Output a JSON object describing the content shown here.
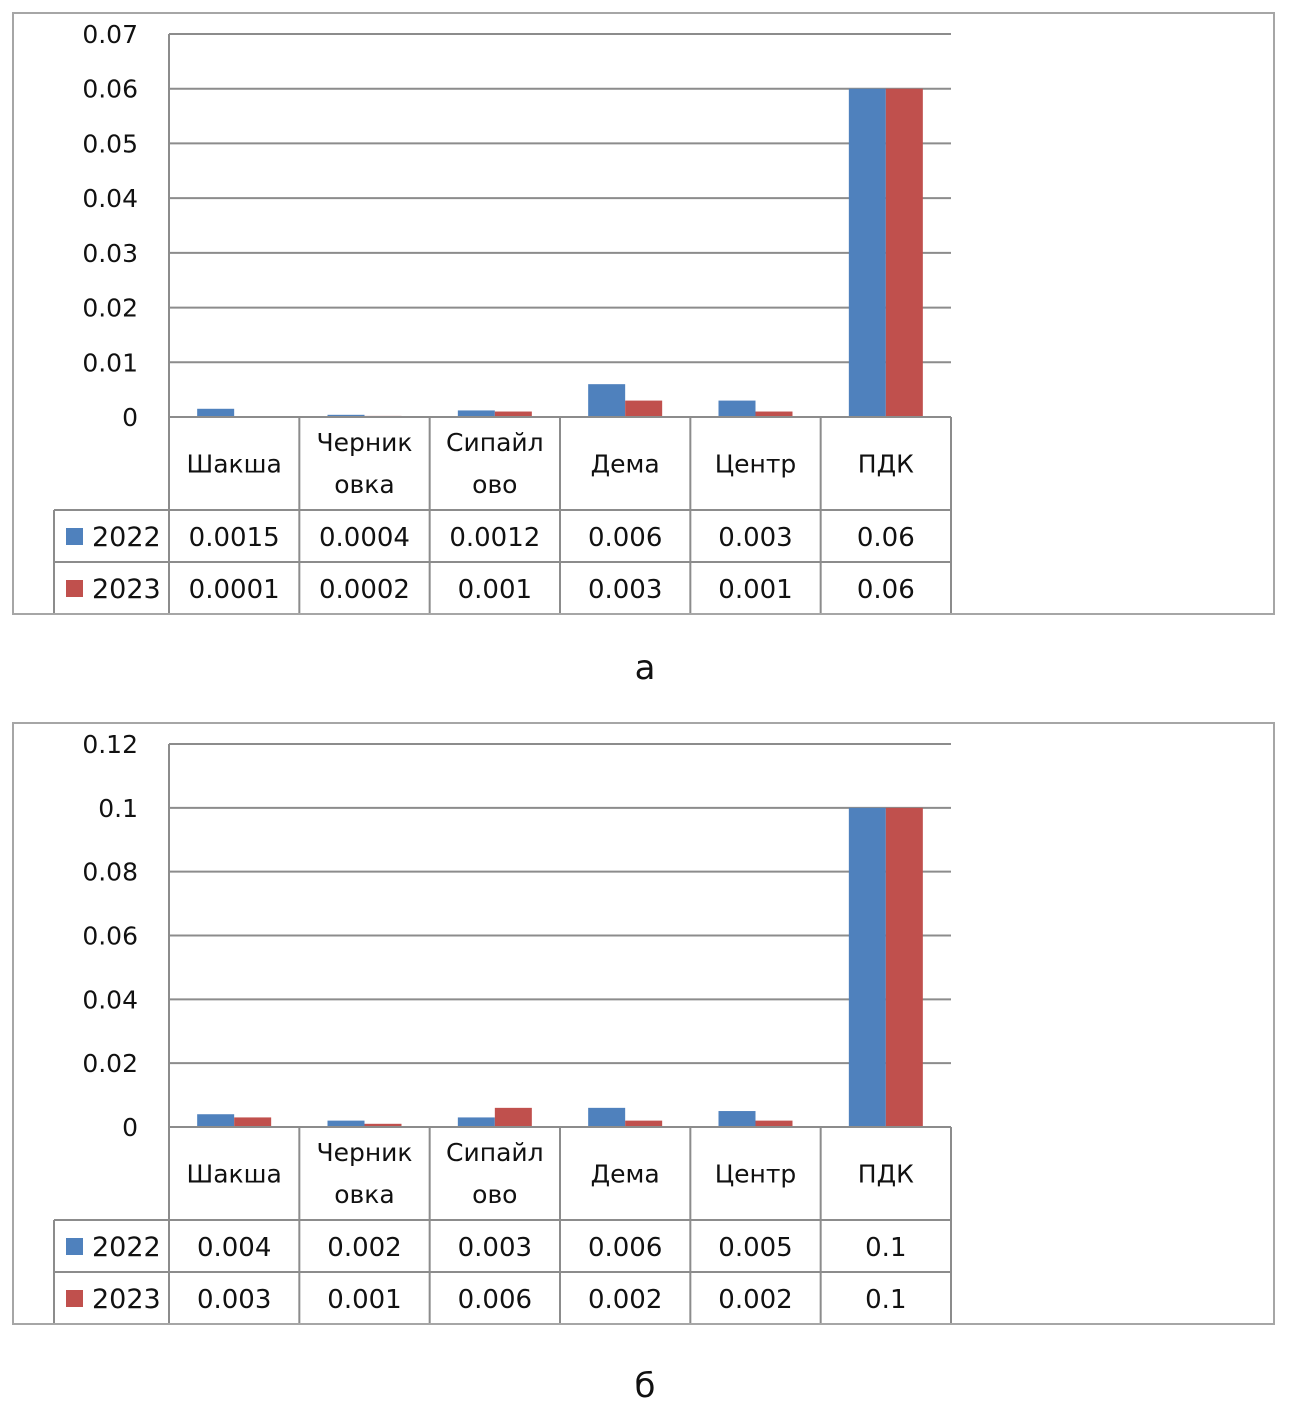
{
  "colors": {
    "2022": "#4f81bd",
    "2023": "#c0504d",
    "grid": "#8c8c8c",
    "frame": "#a6a6a6"
  },
  "captions": {
    "a": "а",
    "b": "б"
  },
  "chart_data": [
    {
      "type": "bar",
      "ylim": [
        0,
        0.07
      ],
      "yticks": [
        "0",
        "0.01",
        "0.02",
        "0.03",
        "0.04",
        "0.05",
        "0.06",
        "0.07"
      ],
      "categories": [
        [
          "Шакша"
        ],
        [
          "Черник",
          "овка"
        ],
        [
          "Сипайл",
          "ово"
        ],
        [
          "Дема"
        ],
        [
          "Центр"
        ],
        [
          "ПДК"
        ]
      ],
      "series": [
        {
          "name": "2022",
          "values": [
            0.0015,
            0.0004,
            0.0012,
            0.006,
            0.003,
            0.06
          ],
          "labels": [
            "0.0015",
            "0.0004",
            "0.0012",
            "0.006",
            "0.003",
            "0.06"
          ]
        },
        {
          "name": "2023",
          "values": [
            0.0001,
            0.0002,
            0.001,
            0.003,
            0.001,
            0.06
          ],
          "labels": [
            "0.0001",
            "0.0002",
            "0.001",
            "0.003",
            "0.001",
            "0.06"
          ]
        }
      ],
      "grid": true,
      "legend": "data-table"
    },
    {
      "type": "bar",
      "ylim": [
        0,
        0.12
      ],
      "yticks": [
        "0",
        "0.02",
        "0.04",
        "0.06",
        "0.08",
        "0.1",
        "0.12"
      ],
      "categories": [
        [
          "Шакша"
        ],
        [
          "Черник",
          "овка"
        ],
        [
          "Сипайл",
          "ово"
        ],
        [
          "Дема"
        ],
        [
          "Центр"
        ],
        [
          "ПДК"
        ]
      ],
      "series": [
        {
          "name": "2022",
          "values": [
            0.004,
            0.002,
            0.003,
            0.006,
            0.005,
            0.1
          ],
          "labels": [
            "0.004",
            "0.002",
            "0.003",
            "0.006",
            "0.005",
            "0.1"
          ]
        },
        {
          "name": "2023",
          "values": [
            0.003,
            0.001,
            0.006,
            0.002,
            0.002,
            0.1
          ],
          "labels": [
            "0.003",
            "0.001",
            "0.006",
            "0.002",
            "0.002",
            "0.1"
          ]
        }
      ],
      "grid": true,
      "legend": "data-table"
    }
  ]
}
